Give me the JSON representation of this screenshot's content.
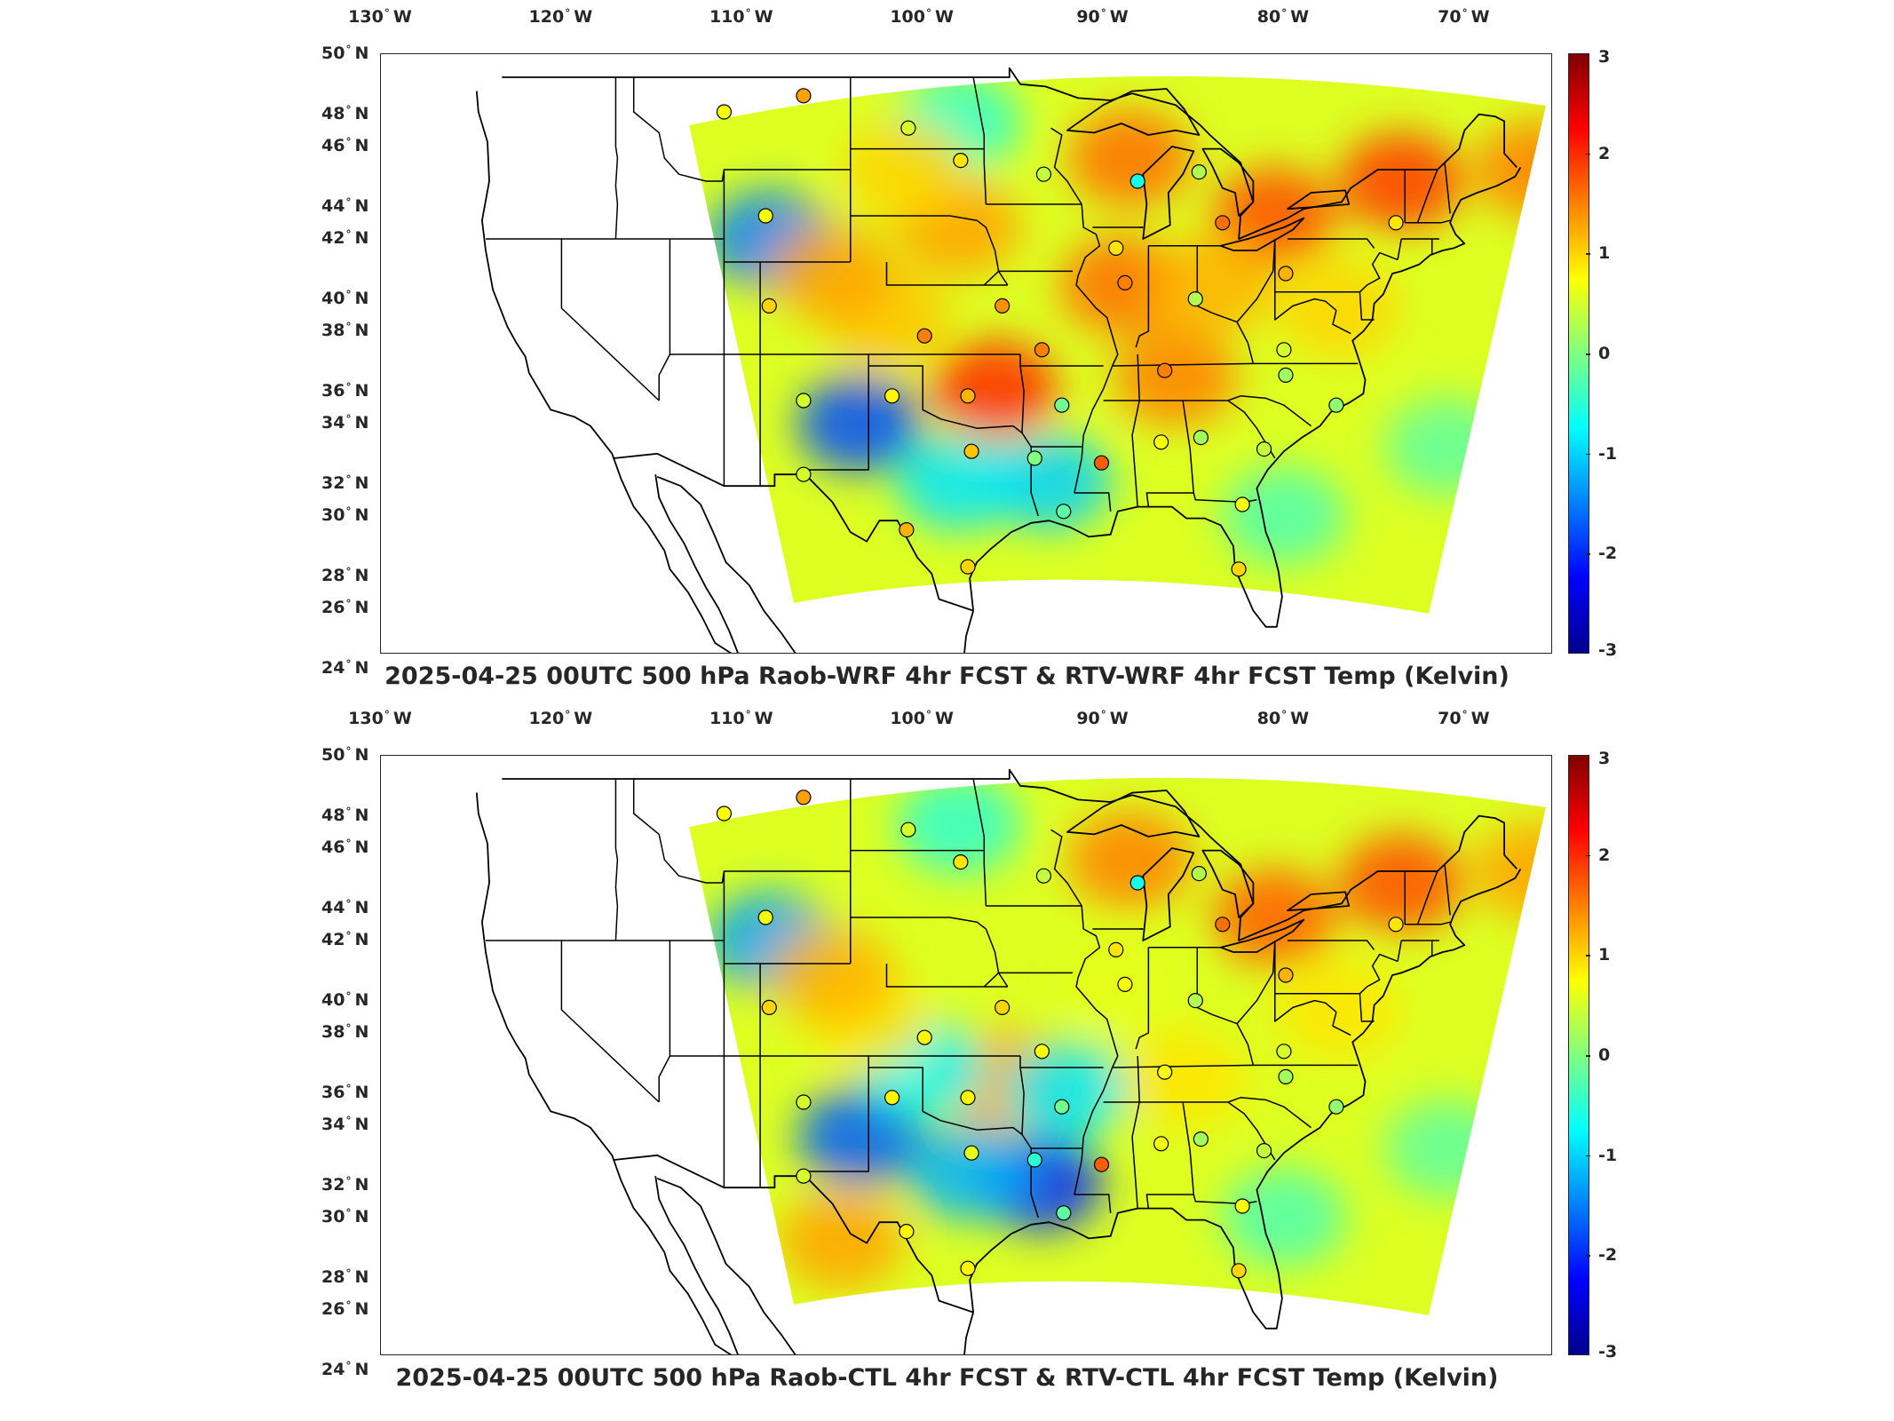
{
  "panels": [
    {
      "title": "2025-04-25 00UTC 500 hPa Raob-WRF 4hr FCST & RTV-WRF 4hr FCST Temp (Kelvin)",
      "colorbar_ticks": [
        "3",
        "2",
        "1",
        "0",
        "-1",
        "-2",
        "-3"
      ],
      "lon_labels": [
        "130",
        "120",
        "110",
        "100",
        "90",
        "80",
        "70"
      ],
      "lat_labels": [
        "50",
        "48",
        "46",
        "44",
        "42",
        "40",
        "38",
        "36",
        "34",
        "32",
        "30",
        "28",
        "26",
        "24"
      ],
      "stations": [
        {
          "lon": -111.0,
          "lat": 47.5,
          "v": 0.7
        },
        {
          "lon": -106.6,
          "lat": 48.2,
          "v": 1.3
        },
        {
          "lon": -100.8,
          "lat": 46.8,
          "v": 0.5
        },
        {
          "lon": -97.9,
          "lat": 45.4,
          "v": 0.9
        },
        {
          "lon": -93.3,
          "lat": 44.8,
          "v": 0.4
        },
        {
          "lon": -88.1,
          "lat": 44.5,
          "v": -0.6
        },
        {
          "lon": -84.7,
          "lat": 44.9,
          "v": 0.3
        },
        {
          "lon": -108.7,
          "lat": 43.0,
          "v": 0.7
        },
        {
          "lon": -89.3,
          "lat": 41.6,
          "v": 0.9
        },
        {
          "lon": -83.4,
          "lat": 42.7,
          "v": 1.6
        },
        {
          "lon": -79.9,
          "lat": 40.5,
          "v": 1.2
        },
        {
          "lon": -73.8,
          "lat": 42.7,
          "v": 0.9
        },
        {
          "lon": -108.5,
          "lat": 39.1,
          "v": 1.0
        },
        {
          "lon": -95.6,
          "lat": 39.1,
          "v": 1.4
        },
        {
          "lon": -88.8,
          "lat": 40.1,
          "v": 1.5
        },
        {
          "lon": -84.9,
          "lat": 39.4,
          "v": 0.3
        },
        {
          "lon": -99.9,
          "lat": 37.8,
          "v": 1.5
        },
        {
          "lon": -93.4,
          "lat": 37.2,
          "v": 1.5
        },
        {
          "lon": -80.0,
          "lat": 37.2,
          "v": 0.5
        },
        {
          "lon": -86.6,
          "lat": 36.3,
          "v": 1.5
        },
        {
          "lon": -79.9,
          "lat": 36.1,
          "v": 0.2
        },
        {
          "lon": -106.6,
          "lat": 35.0,
          "v": 0.5
        },
        {
          "lon": -101.7,
          "lat": 35.2,
          "v": 0.8
        },
        {
          "lon": -97.5,
          "lat": 35.2,
          "v": 1.2
        },
        {
          "lon": -92.3,
          "lat": 34.8,
          "v": -0.1
        },
        {
          "lon": -77.1,
          "lat": 34.8,
          "v": 0.1
        },
        {
          "lon": -106.6,
          "lat": 31.8,
          "v": 0.5
        },
        {
          "lon": -97.3,
          "lat": 32.8,
          "v": 1.1
        },
        {
          "lon": -93.8,
          "lat": 32.5,
          "v": 0.0
        },
        {
          "lon": -90.1,
          "lat": 32.3,
          "v": 1.7
        },
        {
          "lon": -86.8,
          "lat": 33.2,
          "v": 0.7
        },
        {
          "lon": -84.6,
          "lat": 33.4,
          "v": 0.2
        },
        {
          "lon": -81.1,
          "lat": 32.9,
          "v": 0.4
        },
        {
          "lon": -100.9,
          "lat": 29.4,
          "v": 1.2
        },
        {
          "lon": -92.2,
          "lat": 30.2,
          "v": -0.2
        },
        {
          "lon": -82.3,
          "lat": 30.5,
          "v": 0.7
        },
        {
          "lon": -97.5,
          "lat": 27.8,
          "v": 1.0
        },
        {
          "lon": -82.5,
          "lat": 27.7,
          "v": 1.0
        }
      ],
      "blobs": [
        {
          "lon": -96.0,
          "lat": 35.5,
          "v": 2.0
        },
        {
          "lon": -89.0,
          "lat": 40.0,
          "v": 1.6
        },
        {
          "lon": -88.5,
          "lat": 45.5,
          "v": 1.6
        },
        {
          "lon": -80.5,
          "lat": 43.0,
          "v": 1.8
        },
        {
          "lon": -73.5,
          "lat": 44.5,
          "v": 1.9
        },
        {
          "lon": -98.0,
          "lat": 42.5,
          "v": 1.3
        },
        {
          "lon": -103.5,
          "lat": 34.0,
          "v": -1.8
        },
        {
          "lon": -108.5,
          "lat": 42.0,
          "v": -1.5
        },
        {
          "lon": -93.0,
          "lat": 31.5,
          "v": -1.0
        },
        {
          "lon": -98.0,
          "lat": 31.5,
          "v": -0.9
        },
        {
          "lon": -86.0,
          "lat": 36.0,
          "v": 1.5
        },
        {
          "lon": -102.0,
          "lat": 38.5,
          "v": 1.1
        },
        {
          "lon": -105.0,
          "lat": 40.5,
          "v": 1.3
        },
        {
          "lon": -84.0,
          "lat": 40.0,
          "v": 1.2
        },
        {
          "lon": -98.0,
          "lat": 47.0,
          "v": -0.5
        },
        {
          "lon": -101.0,
          "lat": 45.0,
          "v": 1.0
        },
        {
          "lon": -66.0,
          "lat": 45.0,
          "v": 1.5
        },
        {
          "lon": -77.0,
          "lat": 39.0,
          "v": 1.0
        },
        {
          "lon": -80.0,
          "lat": 30.0,
          "v": -0.3
        },
        {
          "lon": -71.0,
          "lat": 33.0,
          "v": -0.2
        }
      ]
    },
    {
      "title": "2025-04-25 00UTC 500 hPa Raob-CTL 4hr FCST & RTV-CTL 4hr FCST Temp (Kelvin)",
      "colorbar_ticks": [
        "3",
        "2",
        "1",
        "0",
        "-1",
        "-2",
        "-3"
      ],
      "lon_labels": [
        "130",
        "120",
        "110",
        "100",
        "90",
        "80",
        "70"
      ],
      "lat_labels": [
        "50",
        "48",
        "46",
        "44",
        "42",
        "40",
        "38",
        "36",
        "34",
        "32",
        "30",
        "28",
        "26",
        "24"
      ],
      "stations": [
        {
          "lon": -111.0,
          "lat": 47.5,
          "v": 0.7
        },
        {
          "lon": -106.6,
          "lat": 48.2,
          "v": 1.3
        },
        {
          "lon": -100.8,
          "lat": 46.8,
          "v": 0.5
        },
        {
          "lon": -97.9,
          "lat": 45.4,
          "v": 0.9
        },
        {
          "lon": -93.3,
          "lat": 44.8,
          "v": 0.4
        },
        {
          "lon": -88.1,
          "lat": 44.5,
          "v": -0.6
        },
        {
          "lon": -84.7,
          "lat": 44.9,
          "v": 0.3
        },
        {
          "lon": -108.7,
          "lat": 43.0,
          "v": 0.7
        },
        {
          "lon": -89.3,
          "lat": 41.6,
          "v": 0.9
        },
        {
          "lon": -83.4,
          "lat": 42.7,
          "v": 1.6
        },
        {
          "lon": -79.9,
          "lat": 40.5,
          "v": 1.2
        },
        {
          "lon": -73.8,
          "lat": 42.7,
          "v": 0.9
        },
        {
          "lon": -108.5,
          "lat": 39.1,
          "v": 1.0
        },
        {
          "lon": -95.6,
          "lat": 39.1,
          "v": 1.0
        },
        {
          "lon": -88.8,
          "lat": 40.1,
          "v": 0.7
        },
        {
          "lon": -84.9,
          "lat": 39.4,
          "v": 0.3
        },
        {
          "lon": -99.9,
          "lat": 37.8,
          "v": 0.8
        },
        {
          "lon": -93.4,
          "lat": 37.2,
          "v": 0.7
        },
        {
          "lon": -80.0,
          "lat": 37.2,
          "v": 0.5
        },
        {
          "lon": -86.6,
          "lat": 36.3,
          "v": 0.7
        },
        {
          "lon": -79.9,
          "lat": 36.1,
          "v": 0.2
        },
        {
          "lon": -106.6,
          "lat": 35.0,
          "v": 0.5
        },
        {
          "lon": -101.7,
          "lat": 35.2,
          "v": 0.8
        },
        {
          "lon": -97.5,
          "lat": 35.2,
          "v": 0.8
        },
        {
          "lon": -92.3,
          "lat": 34.8,
          "v": -0.1
        },
        {
          "lon": -77.1,
          "lat": 34.8,
          "v": 0.1
        },
        {
          "lon": -106.6,
          "lat": 31.8,
          "v": 0.5
        },
        {
          "lon": -97.3,
          "lat": 32.8,
          "v": 0.6
        },
        {
          "lon": -93.8,
          "lat": 32.5,
          "v": -0.5
        },
        {
          "lon": -90.1,
          "lat": 32.3,
          "v": 1.7
        },
        {
          "lon": -86.8,
          "lat": 33.2,
          "v": 0.7
        },
        {
          "lon": -84.6,
          "lat": 33.4,
          "v": 0.2
        },
        {
          "lon": -81.1,
          "lat": 32.9,
          "v": 0.4
        },
        {
          "lon": -100.9,
          "lat": 29.4,
          "v": 0.8
        },
        {
          "lon": -92.2,
          "lat": 30.2,
          "v": -0.2
        },
        {
          "lon": -82.3,
          "lat": 30.5,
          "v": 0.7
        },
        {
          "lon": -97.5,
          "lat": 27.8,
          "v": 0.8
        },
        {
          "lon": -82.5,
          "lat": 27.7,
          "v": 1.0
        }
      ],
      "blobs": [
        {
          "lon": -95.5,
          "lat": 36.0,
          "v": 1.3
        },
        {
          "lon": -88.5,
          "lat": 45.5,
          "v": 1.5
        },
        {
          "lon": -80.5,
          "lat": 43.0,
          "v": 1.7
        },
        {
          "lon": -73.5,
          "lat": 44.5,
          "v": 1.8
        },
        {
          "lon": -103.5,
          "lat": 33.5,
          "v": -1.7
        },
        {
          "lon": -108.5,
          "lat": 42.0,
          "v": -1.3
        },
        {
          "lon": -93.5,
          "lat": 31.5,
          "v": -2.0
        },
        {
          "lon": -97.5,
          "lat": 32.0,
          "v": -1.2
        },
        {
          "lon": -100.0,
          "lat": 36.5,
          "v": -0.8
        },
        {
          "lon": -92.0,
          "lat": 35.5,
          "v": -0.9
        },
        {
          "lon": -103.0,
          "lat": 38.5,
          "v": 0.9
        },
        {
          "lon": -105.0,
          "lat": 40.5,
          "v": 1.2
        },
        {
          "lon": -85.5,
          "lat": 36.0,
          "v": 0.9
        },
        {
          "lon": -98.0,
          "lat": 47.0,
          "v": -0.5
        },
        {
          "lon": -66.0,
          "lat": 45.0,
          "v": 1.3
        },
        {
          "lon": -77.0,
          "lat": 39.0,
          "v": 0.9
        },
        {
          "lon": -89.0,
          "lat": 40.0,
          "v": 0.6
        },
        {
          "lon": -80.0,
          "lat": 30.0,
          "v": -0.3
        },
        {
          "lon": -71.0,
          "lat": 33.0,
          "v": -0.2
        },
        {
          "lon": -104.5,
          "lat": 29.0,
          "v": 1.3
        }
      ]
    }
  ]
}
